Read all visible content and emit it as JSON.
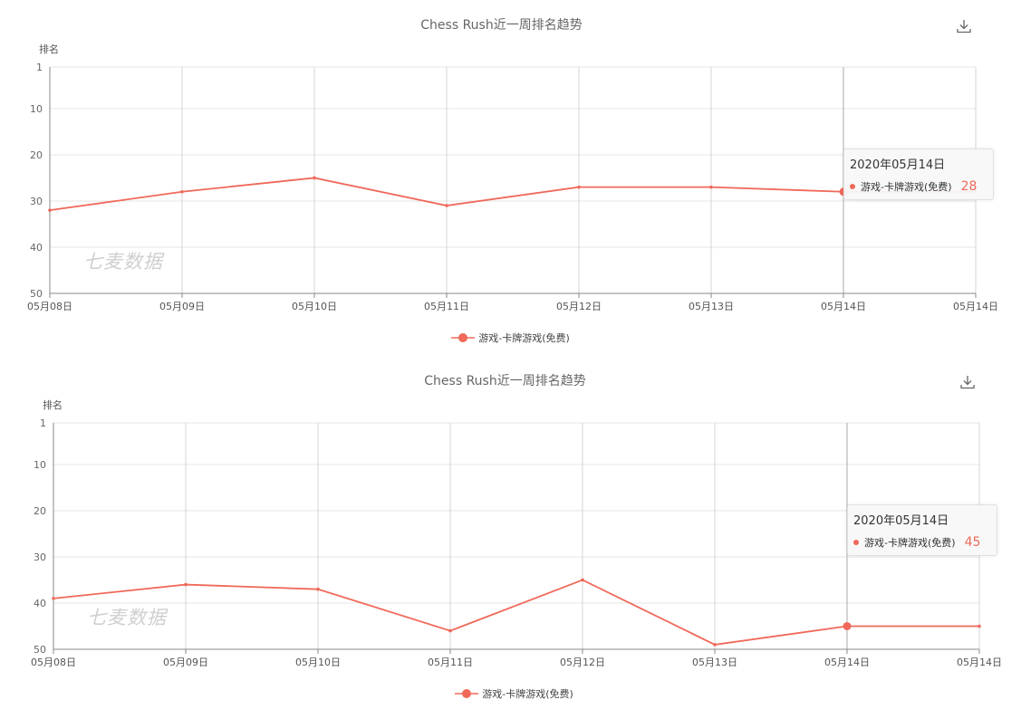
{
  "accent_color": "#f0695a",
  "charts": [
    {
      "title": "Chess Rush近一周排名趋势",
      "ylabel": "排名",
      "legend_label": "游戏-卡牌游戏(免费)",
      "watermark": "七麦数据",
      "download_icon": "download-icon",
      "tooltip": {
        "date": "2020年05月14日",
        "series": "游戏-卡牌游戏(免费)",
        "value": "28"
      }
    },
    {
      "title": "Chess Rush近一周排名趋势",
      "ylabel": "排名",
      "legend_label": "游戏-卡牌游戏(免费)",
      "watermark": "七麦数据",
      "download_icon": "download-icon",
      "tooltip": {
        "date": "2020年05月14日",
        "series": "游戏-卡牌游戏(免费)",
        "value": "45"
      }
    }
  ],
  "chart_data": [
    {
      "type": "line",
      "title": "Chess Rush近一周排名趋势",
      "ylabel": "排名",
      "xlabel": "",
      "y_inverted": true,
      "ylim": [
        1,
        50
      ],
      "yticks": [
        1,
        10,
        20,
        30,
        40,
        50
      ],
      "x_ticks": [
        "05月08日",
        "05月09日",
        "05月10日",
        "05月11日",
        "05月12日",
        "05月13日",
        "05月14日",
        "05月14日"
      ],
      "series": [
        {
          "name": "游戏-卡牌游戏(免费)",
          "values": [
            32,
            28,
            25,
            31,
            27,
            27,
            28,
            28
          ]
        }
      ],
      "highlight_index": 6,
      "grid": true,
      "legend": "bottom-center"
    },
    {
      "type": "line",
      "title": "Chess Rush近一周排名趋势",
      "ylabel": "排名",
      "xlabel": "",
      "y_inverted": true,
      "ylim": [
        1,
        50
      ],
      "yticks": [
        1,
        10,
        20,
        30,
        40,
        50
      ],
      "x_ticks": [
        "05月08日",
        "05月09日",
        "05月10日",
        "05月11日",
        "05月12日",
        "05月13日",
        "05月14日",
        "05月14日"
      ],
      "series": [
        {
          "name": "游戏-卡牌游戏(免费)",
          "values": [
            39,
            36,
            37,
            46,
            35,
            49,
            45,
            45
          ]
        }
      ],
      "highlight_index": 6,
      "grid": true,
      "legend": "bottom-center"
    }
  ]
}
